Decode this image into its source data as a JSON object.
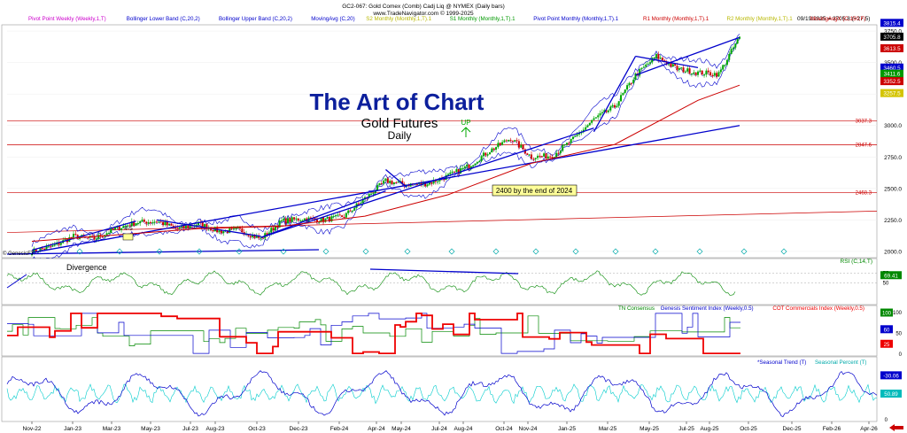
{
  "header": {
    "symbol_line": "GC2-067: Gold Comex (Comb) Cadj Liq @ NYMEX (Daily bars)",
    "site_line": "www.TradeNavigator.com © 1999-2025",
    "date_readout": "09/19/2025 = 3705.8 (+27.5)"
  },
  "legend_top": [
    {
      "label": "Pivot Point Weekly (Weekly,1,T)",
      "color": "#cc00cc"
    },
    {
      "label": "Bollinger Lower Band (C,20,2)",
      "color": "#0000cc"
    },
    {
      "label": "Bollinger Upper Band (C,20,2)",
      "color": "#0000cc"
    },
    {
      "label": "MovingAvg (C,20)",
      "color": "#0000cc"
    },
    {
      "label": "S2 Monthly (Monthly,1,T).1",
      "color": "#b8b800"
    },
    {
      "label": "S1 Monthly (Monthly,1,T).1",
      "color": "#009900"
    },
    {
      "label": "Pivot Point Monthly (Monthly,1,T).1",
      "color": "#0000cc"
    },
    {
      "label": "R1 Monthly (Monthly,1,T).1",
      "color": "#cc0000"
    },
    {
      "label": "R2 Monthly (Monthly,1,T).1",
      "color": "#b8b800"
    },
    {
      "label": "MovingAvgX (C,150,F)",
      "color": "#cc0000"
    }
  ],
  "titles": {
    "main": "The Art of Chart",
    "sub1": "Gold Futures",
    "sub2": "Daily"
  },
  "annotations": {
    "up": "UP",
    "target": "2400 by the end of 2024",
    "wave": "4-5",
    "divergence": "Divergence",
    "genesis": "© GenesisFT"
  },
  "colors": {
    "up_candle": "#00aa00",
    "down_candle": "#cc0000",
    "trendline": "#0000cc",
    "boll": "#0000cc",
    "ma150": "#cc0000",
    "level_line": "#cc0000",
    "rsi": "#008800",
    "tn_consensus": "#008800",
    "sentiment": "#0000cc",
    "cot": "#ee0000",
    "seasonal_trend": "#0000cc",
    "seasonal_pct": "#00cccc"
  },
  "panels": {
    "rsi": {
      "label": "RSI (C,14,T)",
      "readout": "69.41",
      "ticks": [
        "75",
        "50"
      ]
    },
    "sentiment": {
      "labels": [
        "TN Consensus",
        "Genesis Sentiment Index (Weekly,0.5)",
        "COT Commercials Index (Weekly,0.5)"
      ],
      "readouts": [
        "100",
        "60",
        "25"
      ],
      "ticks": [
        "100",
        "50",
        "0"
      ]
    },
    "seasonal": {
      "labels": [
        "*Seasonal Trend (T)",
        "Seasonal Percent (T)"
      ],
      "readouts": [
        "-30.06",
        "50.89"
      ],
      "ticks": [
        "50",
        "0"
      ]
    }
  },
  "price_badges": [
    {
      "value": "3815.4",
      "color": "#0000cc"
    },
    {
      "value": "3705.8",
      "color": "#000000"
    },
    {
      "value": "3613.5",
      "color": "#cc0000"
    },
    {
      "value": "3460.5",
      "color": "#0000cc"
    },
    {
      "value": "3411.6",
      "color": "#009900"
    },
    {
      "value": "3352.5",
      "color": "#cc0000"
    },
    {
      "value": "3257.5",
      "color": "#d4c400"
    }
  ],
  "level_lines": [
    {
      "label": "3037.3",
      "value": 3037.3
    },
    {
      "label": "2847.6",
      "value": 2847.6
    },
    {
      "label": "2468.3",
      "value": 2468.3
    }
  ],
  "chart_data": {
    "type": "line",
    "title": "The Art of Chart",
    "subtitle": "Gold Futures Daily",
    "x_ticks": [
      "Nov-22",
      "Jan-23",
      "Mar-23",
      "May-23",
      "Jul-23",
      "Aug-23",
      "Oct-23",
      "Dec-23",
      "Feb-24",
      "Apr-24",
      "May-24",
      "Jul-24",
      "Aug-24",
      "Oct-24",
      "Nov-24",
      "Jan-25",
      "Mar-25",
      "May-25",
      "Jul-25",
      "Aug-25",
      "Oct-25",
      "Dec-25",
      "Feb-26",
      "Apr-26"
    ],
    "y_ticks": [
      "3750.0",
      "3500.0",
      "3250.0",
      "3000.0",
      "2750.0",
      "2500.0",
      "2250.0",
      "2000.0"
    ],
    "ylim": [
      1950,
      3800
    ],
    "series": [
      {
        "name": "Gold Comex (Comb) Cadj Liq",
        "x": [
          "Nov-22",
          "Dec-22",
          "Jan-23",
          "Feb-23",
          "Mar-23",
          "Apr-23",
          "May-23",
          "Jun-23",
          "Jul-23",
          "Aug-23",
          "Sep-23",
          "Oct-23",
          "Nov-23",
          "Dec-23",
          "Jan-24",
          "Feb-24",
          "Mar-24",
          "Apr-24",
          "May-24",
          "Jun-24",
          "Jul-24",
          "Aug-24",
          "Sep-24",
          "Oct-24",
          "Nov-24",
          "Dec-24",
          "Jan-25",
          "Feb-25",
          "Mar-25",
          "Apr-25",
          "May-25",
          "Jun-25",
          "Jul-25",
          "Aug-25",
          "Sep-25"
        ],
        "values": [
          2000,
          2040,
          2120,
          2100,
          2180,
          2230,
          2240,
          2180,
          2220,
          2160,
          2170,
          2100,
          2240,
          2260,
          2250,
          2280,
          2420,
          2560,
          2530,
          2540,
          2600,
          2680,
          2800,
          2900,
          2750,
          2760,
          2890,
          3050,
          3150,
          3400,
          3550,
          3450,
          3420,
          3410,
          3705.8
        ]
      },
      {
        "name": "MovingAvgX (C,150,F)",
        "x": [
          "Nov-22",
          "Mar-23",
          "Jul-23",
          "Nov-23",
          "Mar-24",
          "Jul-24",
          "Nov-24",
          "Mar-25",
          "Jul-25",
          "Sep-25"
        ],
        "values": [
          2080,
          2130,
          2180,
          2200,
          2280,
          2450,
          2700,
          2850,
          3200,
          3320
        ]
      }
    ],
    "grid": true,
    "legend": "top"
  },
  "bottom": {
    "arrow_icon": "arrow-left-icon"
  }
}
